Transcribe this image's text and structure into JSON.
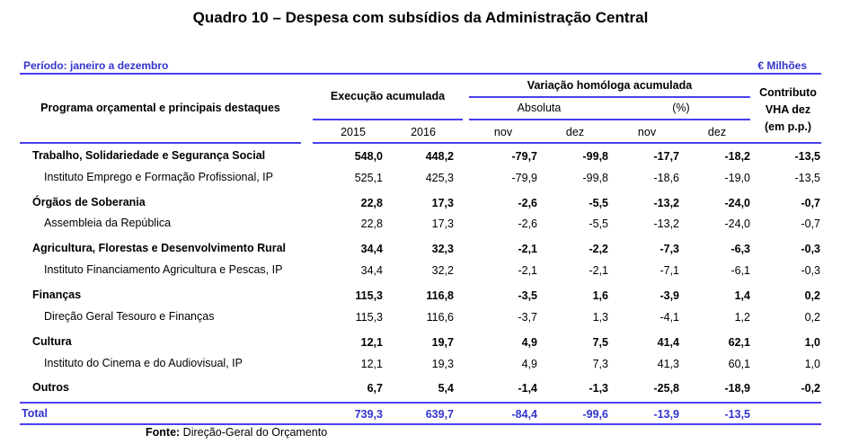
{
  "title": "Quadro 10 – Despesa com subsídios da Administração Central",
  "periodo": "Período: janeiro a dezembro",
  "unidade": "€ Milhões",
  "header": {
    "programa": "Programa orçamental e principais destaques",
    "execucao": "Execução acumulada",
    "variacao": "Variação homóloga acumulada",
    "absoluta": "Absoluta",
    "percent": "(%)",
    "contributo_1": "Contributo",
    "contributo_2": "VHA dez",
    "contributo_3": "(em p.p.)",
    "y2015": "2015",
    "y2016": "2016",
    "abs_nov": "nov",
    "abs_dez": "dez",
    "pct_nov": "nov",
    "pct_dez": "dez"
  },
  "rows": [
    {
      "label": "Trabalho, Solidariedade e Segurança Social",
      "v2015": "548,0",
      "v2016": "448,2",
      "abs_nov": "-79,7",
      "abs_dez": "-99,8",
      "pct_nov": "-17,7",
      "pct_dez": "-18,2",
      "contributo": "-13,5"
    },
    {
      "label": "Instituto Emprego e Formação Profissional, IP",
      "v2015": "525,1",
      "v2016": "425,3",
      "abs_nov": "-79,9",
      "abs_dez": "-99,8",
      "pct_nov": "-18,6",
      "pct_dez": "-19,0",
      "contributo": "-13,5"
    },
    {
      "label": "Órgãos de Soberania",
      "v2015": "22,8",
      "v2016": "17,3",
      "abs_nov": "-2,6",
      "abs_dez": "-5,5",
      "pct_nov": "-13,2",
      "pct_dez": "-24,0",
      "contributo": "-0,7"
    },
    {
      "label": "Assembleia da República",
      "v2015": "22,8",
      "v2016": "17,3",
      "abs_nov": "-2,6",
      "abs_dez": "-5,5",
      "pct_nov": "-13,2",
      "pct_dez": "-24,0",
      "contributo": "-0,7"
    },
    {
      "label": "Agricultura, Florestas e Desenvolvimento Rural",
      "v2015": "34,4",
      "v2016": "32,3",
      "abs_nov": "-2,1",
      "abs_dez": "-2,2",
      "pct_nov": "-7,3",
      "pct_dez": "-6,3",
      "contributo": "-0,3"
    },
    {
      "label": "Instituto Financiamento Agricultura e Pescas, IP",
      "v2015": "34,4",
      "v2016": "32,2",
      "abs_nov": "-2,1",
      "abs_dez": "-2,1",
      "pct_nov": "-7,1",
      "pct_dez": "-6,1",
      "contributo": "-0,3"
    },
    {
      "label": "Finanças",
      "v2015": "115,3",
      "v2016": "116,8",
      "abs_nov": "-3,5",
      "abs_dez": "1,6",
      "pct_nov": "-3,9",
      "pct_dez": "1,4",
      "contributo": "0,2"
    },
    {
      "label": "Direção Geral Tesouro e Finanças",
      "v2015": "115,3",
      "v2016": "116,6",
      "abs_nov": "-3,7",
      "abs_dez": "1,3",
      "pct_nov": "-4,1",
      "pct_dez": "1,2",
      "contributo": "0,2"
    },
    {
      "label": "Cultura",
      "v2015": "12,1",
      "v2016": "19,7",
      "abs_nov": "4,9",
      "abs_dez": "7,5",
      "pct_nov": "41,4",
      "pct_dez": "62,1",
      "contributo": "1,0"
    },
    {
      "label": "Instituto do Cinema e do Audiovisual, IP",
      "v2015": "12,1",
      "v2016": "19,3",
      "abs_nov": "4,9",
      "abs_dez": "7,3",
      "pct_nov": "41,3",
      "pct_dez": "60,1",
      "contributo": "1,0"
    },
    {
      "label": "Outros",
      "v2015": "6,7",
      "v2016": "5,4",
      "abs_nov": "-1,4",
      "abs_dez": "-1,3",
      "pct_nov": "-25,8",
      "pct_dez": "-18,9",
      "contributo": "-0,2"
    }
  ],
  "total": {
    "label": "Total",
    "v2015": "739,3",
    "v2016": "639,7",
    "abs_nov": "-84,4",
    "abs_dez": "-99,6",
    "pct_nov": "-13,9",
    "pct_dez": "-13,5"
  },
  "fonte": {
    "label": "Fonte:",
    "text": " Direção-Geral do Orçamento"
  }
}
